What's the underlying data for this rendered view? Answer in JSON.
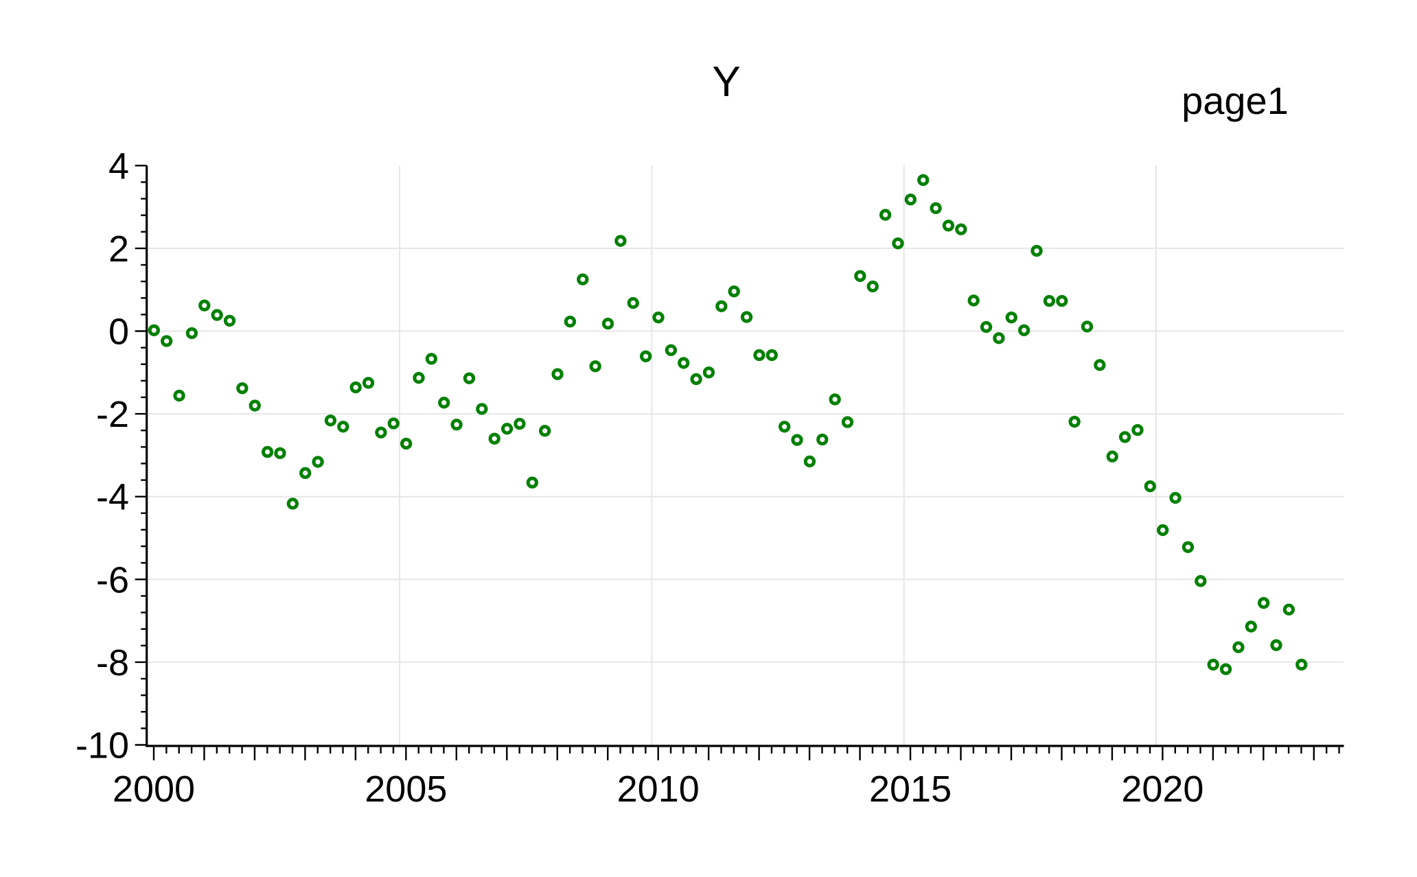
{
  "page": {
    "title": "Y",
    "page_label": "page1"
  },
  "chart_data": {
    "type": "scatter",
    "title": "Y",
    "series_name": "Y",
    "marker": "open-circle",
    "marker_color": "#028002",
    "grid_color": "#e6e6e6",
    "axis_color": "#000000",
    "grid": true,
    "legend_position": "none",
    "x_start": 2000.0,
    "x_step_years": 0.25,
    "frequency": "quarterly",
    "xlim": [
      2000,
      2023.5
    ],
    "ylim": [
      -10,
      4
    ],
    "x_labeled_years": [
      2000,
      2005,
      2010,
      2015,
      2020
    ],
    "v_gridline_years": [
      2005,
      2010,
      2015,
      2020
    ],
    "y_major_ticks": [
      4,
      2,
      0,
      -2,
      -4,
      -6,
      -8,
      -10
    ],
    "h_gridlines": [
      2,
      0,
      -2,
      -4,
      -6,
      -8
    ],
    "y_minor_step": 0.4,
    "x_minor_step_years": 0.25,
    "values": [
      0.02,
      -0.24,
      -1.56,
      -0.05,
      0.62,
      0.39,
      0.25,
      -1.38,
      -1.8,
      -2.92,
      -2.95,
      -4.17,
      -3.43,
      -3.16,
      -2.16,
      -2.31,
      -1.36,
      -1.25,
      -2.45,
      -2.23,
      -2.72,
      -1.13,
      -0.67,
      -1.73,
      -2.26,
      -1.14,
      -1.88,
      -2.6,
      -2.36,
      -2.24,
      -3.66,
      -2.41,
      -1.04,
      0.23,
      1.25,
      -0.85,
      0.18,
      2.18,
      0.68,
      -0.61,
      0.33,
      -0.46,
      -0.77,
      -1.16,
      -1.0,
      0.6,
      0.96,
      0.34,
      -0.58,
      -0.58,
      -2.31,
      -2.63,
      -3.15,
      -2.62,
      -1.65,
      -2.2,
      1.33,
      1.08,
      2.81,
      2.12,
      3.18,
      3.65,
      2.97,
      2.55,
      2.46,
      0.74,
      0.1,
      -0.17,
      0.33,
      0.02,
      1.94,
      0.73,
      0.73,
      -2.19,
      0.11,
      -0.82,
      -3.03,
      -2.56,
      -2.39,
      -3.75,
      -4.81,
      -4.03,
      -5.22,
      -6.04,
      -8.06,
      -8.17,
      -7.64,
      -7.14,
      -6.57,
      -7.59,
      -6.73,
      -8.06
    ]
  }
}
